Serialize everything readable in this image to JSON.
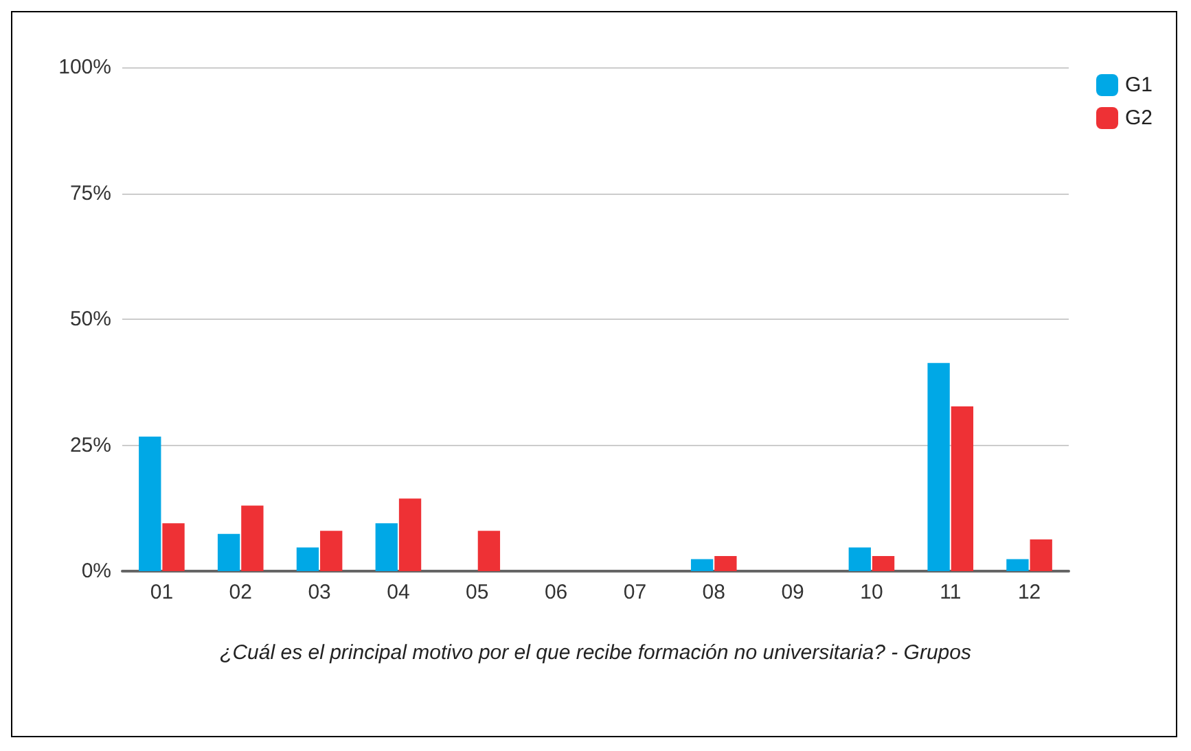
{
  "chart_data": {
    "type": "bar",
    "xlabel": "¿Cuál es el principal motivo por el que recibe formación no universitaria? - Grupos",
    "categories": [
      "01",
      "02",
      "03",
      "04",
      "05",
      "06",
      "07",
      "08",
      "09",
      "10",
      "11",
      "12"
    ],
    "series": [
      {
        "name": "G1",
        "color": "#00a8e6",
        "values": [
          26.7,
          7.4,
          4.7,
          9.5,
          0,
          0,
          0,
          2.4,
          0,
          4.7,
          41.3,
          2.4
        ]
      },
      {
        "name": "G2",
        "color": "#ee3135",
        "values": [
          9.5,
          13.0,
          8.0,
          14.4,
          8.0,
          0,
          0,
          3.0,
          0,
          3.0,
          32.7,
          6.3
        ]
      }
    ],
    "ylim": [
      0,
      100
    ],
    "yticks": [
      {
        "value": 0,
        "label": "0%"
      },
      {
        "value": 25,
        "label": "25%"
      },
      {
        "value": 50,
        "label": "50%"
      },
      {
        "value": 75,
        "label": "75%"
      },
      {
        "value": 100,
        "label": "100%"
      }
    ],
    "grid": "y",
    "legend": "top right"
  }
}
